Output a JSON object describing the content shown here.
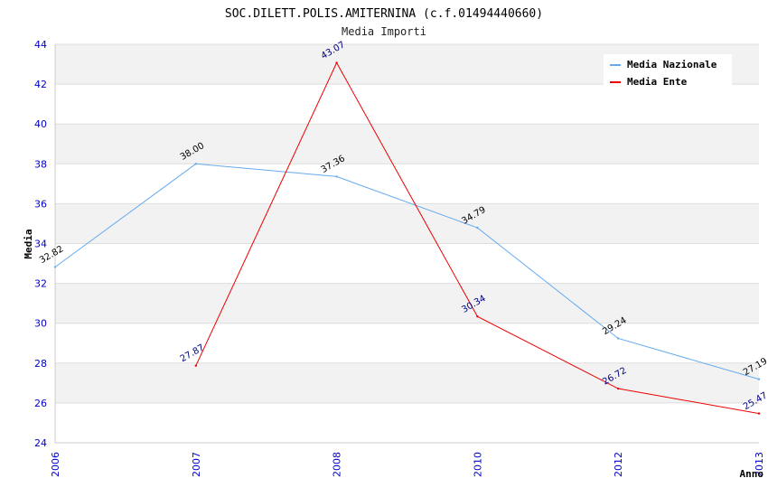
{
  "chart_data": {
    "type": "line",
    "title": "SOC.DILETT.POLIS.AMITERNINA (c.f.01494440660)",
    "subtitle": "Media Importi",
    "xlabel": "Anno",
    "ylabel": "Media",
    "categories": [
      "2006",
      "2007",
      "2008",
      "2010",
      "2012",
      "2013"
    ],
    "ylim": [
      24,
      44
    ],
    "yticks": [
      24,
      26,
      28,
      30,
      32,
      34,
      36,
      38,
      40,
      42,
      44
    ],
    "grid": true,
    "legend_position": "top-right",
    "series": [
      {
        "name": "Media Nazionale",
        "color": "#66aaee",
        "label_color": "#000000",
        "values": [
          32.82,
          38.0,
          37.36,
          34.79,
          29.24,
          27.19
        ],
        "labels": [
          "32.82",
          "38.00",
          "37.36",
          "34.79",
          "29.24",
          "27.19"
        ]
      },
      {
        "name": "Media Ente",
        "color": "#ee0000",
        "label_color": "#000080",
        "values": [
          null,
          27.87,
          43.07,
          30.34,
          26.72,
          25.47
        ],
        "labels": [
          "",
          "27.87",
          "43.07",
          "30.34",
          "26.72",
          "25.47"
        ]
      }
    ],
    "colors": {
      "band": "#f2f2f2",
      "grid": "#dddddd",
      "tick_label": "#0000cc",
      "title": "#000000"
    }
  }
}
